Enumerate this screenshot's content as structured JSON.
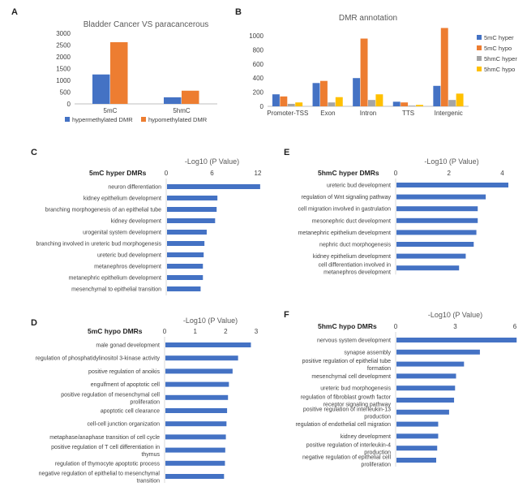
{
  "panels": {
    "A": "A",
    "B": "B",
    "C": "C",
    "D": "D",
    "E": "E",
    "F": "F"
  },
  "chart_data": [
    {
      "id": "A",
      "type": "bar",
      "title": "Bladder Cancer VS paracancerous",
      "categories": [
        "5mC",
        "5hmC"
      ],
      "series": [
        {
          "name": "hypermethylated DMR",
          "values": [
            1250,
            280
          ],
          "color": "#4472C4"
        },
        {
          "name": "hypomethylated DMR",
          "values": [
            2620,
            560
          ],
          "color": "#ED7D31"
        }
      ],
      "yticks": [
        "0",
        "500",
        "1000",
        "1500",
        "2000",
        "2500",
        "3000"
      ],
      "ylim": [
        0,
        3000
      ],
      "legend": "bottom"
    },
    {
      "id": "B",
      "type": "bar",
      "title": "DMR annotation",
      "categories": [
        "Promoter-TSS",
        "Exon",
        "Intron",
        "TTS",
        "Intergenic"
      ],
      "series": [
        {
          "name": "5mC hyper",
          "values": [
            170,
            330,
            400,
            65,
            290
          ],
          "color": "#4472C4"
        },
        {
          "name": "5mC hypo",
          "values": [
            140,
            360,
            960,
            55,
            1110
          ],
          "color": "#ED7D31"
        },
        {
          "name": "5hmC hyper",
          "values": [
            35,
            55,
            90,
            10,
            90
          ],
          "color": "#A5A5A5"
        },
        {
          "name": "5hmC hypo",
          "values": [
            55,
            130,
            170,
            20,
            180
          ],
          "color": "#FFC000"
        }
      ],
      "yticks": [
        "0",
        "200",
        "400",
        "600",
        "800",
        "1000"
      ],
      "ylim": [
        0,
        1150
      ],
      "legend": "right"
    },
    {
      "id": "C",
      "type": "bar",
      "orientation": "horizontal",
      "title": "5mC hyper DMRs",
      "xlabel": "-Log10 (P Value)",
      "xticks": [
        "0",
        "6",
        "12"
      ],
      "xlim": [
        0,
        12
      ],
      "categories": [
        "neuron differentiation",
        "kidney epithelium development",
        "branching morphogenesis of an epithelial tube",
        "kidney development",
        "urogenital system development",
        "branching involved in ureteric bud morphogenesis",
        "ureteric bud development",
        "metanephros development",
        "metanephric epithelium development",
        "mesenchymal to epithelial transition"
      ],
      "values": [
        12.2,
        6.6,
        6.5,
        6.3,
        5.2,
        4.9,
        4.8,
        4.7,
        4.7,
        4.4
      ],
      "color": "#4472C4"
    },
    {
      "id": "D",
      "type": "bar",
      "orientation": "horizontal",
      "title": "5mC hypo DMRs",
      "xlabel": "-Log10 (P Value)",
      "xticks": [
        "0",
        "1",
        "2",
        "3"
      ],
      "xlim": [
        0,
        3
      ],
      "categories": [
        "male gonad development",
        "regulation of phosphatidylinositol 3-kinase activity",
        "positive regulation of anoikis",
        "engulfment of apoptotic cell",
        "positive regulation of mesenchymal cell proliferation",
        "apoptotic cell clearance",
        "cell-cell junction organization",
        "metaphase/anaphase transition of cell cycle",
        "positive regulation of T cell differentiation in thymus",
        "regulation of thymocyte apoptotic process",
        "negative regulation of epithelial to mesenchymal transition"
      ],
      "values": [
        2.8,
        2.38,
        2.2,
        2.08,
        2.05,
        2.02,
        2.0,
        1.98,
        1.96,
        1.95,
        1.92
      ],
      "color": "#4472C4"
    },
    {
      "id": "E",
      "type": "bar",
      "orientation": "horizontal",
      "title": "5hmC hyper DMRs",
      "xlabel": "-Log10 (P Value)",
      "xticks": [
        "0",
        "2",
        "4"
      ],
      "xlim": [
        0,
        4.2
      ],
      "categories": [
        "ureteric bud development",
        "regulation of Wnt signaling pathway",
        "cell migration involved in gastrulation",
        "mesonephric duct development",
        "metanephric epithelium development",
        "nephric duct morphogenesis",
        "kidney epithelium development",
        "cell differentiation involved in metanephros development"
      ],
      "values": [
        4.2,
        3.35,
        3.05,
        3.05,
        3.0,
        2.9,
        2.6,
        2.35
      ],
      "color": "#4472C4"
    },
    {
      "id": "F",
      "type": "bar",
      "orientation": "horizontal",
      "title": "5hmC hypo DMRs",
      "xlabel": "-Log10 (P Value)",
      "xticks": [
        "0",
        "3",
        "6"
      ],
      "xlim": [
        0,
        6
      ],
      "categories": [
        "nervous system development",
        "synapse assembly",
        "positive regulation of epithelial tube formation",
        "mesenchymal cell development",
        "ureteric bud morphogenesis",
        "regulation of fibroblast growth factor receptor signaling pathway",
        "positive regulation of interleukin-13 production",
        "regulation of endothelial cell migration",
        "kidney development",
        "positive regulation of interleukin-4 production",
        "negative regulation of epithelial cell proliferation"
      ],
      "values": [
        6.05,
        4.2,
        3.4,
        3.0,
        2.95,
        2.9,
        2.65,
        2.1,
        2.1,
        2.05,
        2.0
      ],
      "color": "#4472C4"
    }
  ]
}
